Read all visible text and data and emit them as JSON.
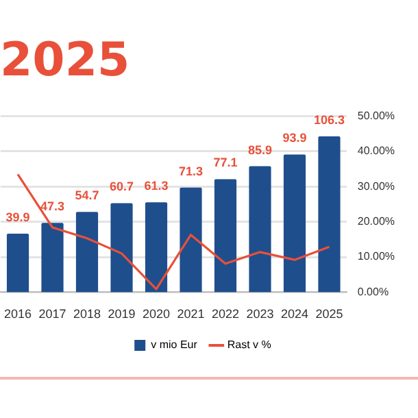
{
  "chart_data": {
    "type": "bar",
    "title": "2025",
    "categories": [
      "2016",
      "2017",
      "2018",
      "2019",
      "2020",
      "2021",
      "2022",
      "2023",
      "2024",
      "2025"
    ],
    "series": [
      {
        "name": "v mio Eur",
        "color": "#1f4e8c",
        "values": [
          39.9,
          47.3,
          54.7,
          60.7,
          61.3,
          71.3,
          77.1,
          85.9,
          93.9,
          106.3
        ],
        "value_labels": [
          "39.9",
          "47.3",
          "54.7",
          "60.7",
          "61.3",
          "71.3",
          "77.1",
          "85.9",
          "93.9",
          "106.3"
        ]
      },
      {
        "name": "Rast v %",
        "type": "line",
        "axis": "y2",
        "color": "#e8503a",
        "values": [
          33.5,
          18.4,
          15.3,
          11,
          0.9,
          16.3,
          8.1,
          11.4,
          9.2,
          12.9
        ]
      }
    ],
    "y2lim": [
      0,
      50
    ],
    "y2ticks": [
      {
        "value": 0,
        "label": "0.00%"
      },
      {
        "value": 10,
        "label": "10.00%"
      },
      {
        "value": 20,
        "label": "20.00%"
      },
      {
        "value": 30,
        "label": "30.00%"
      },
      {
        "value": 40,
        "label": "40.00%"
      },
      {
        "value": 50,
        "label": "50.00%"
      }
    ],
    "grid": "y",
    "legend": "bottom",
    "marker": "none"
  }
}
